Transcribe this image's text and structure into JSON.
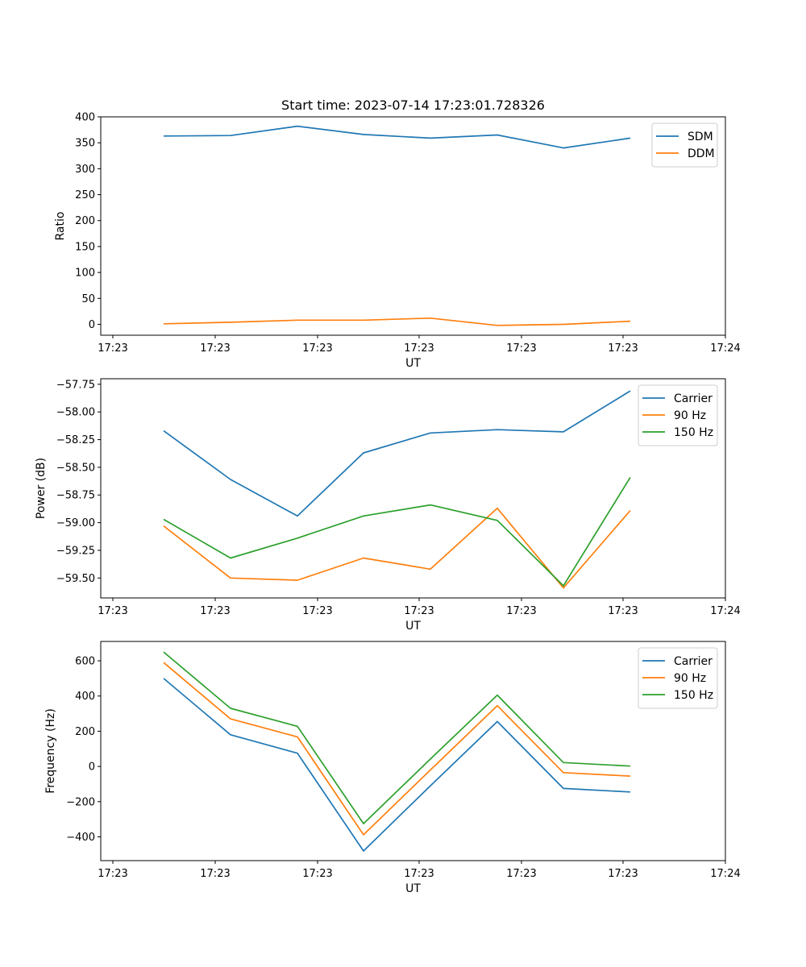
{
  "chart_data": [
    {
      "type": "line",
      "title": "Start time: 2023-07-14 17:23:01.728326",
      "xlabel": "UT",
      "ylabel": "Ratio",
      "legend_position": "top-right",
      "x_tick_labels": [
        "17:23",
        "17:23",
        "17:23",
        "17:23",
        "17:23",
        "17:23",
        "17:24"
      ],
      "y_ticks": [
        0,
        50,
        100,
        150,
        200,
        250,
        300,
        350,
        400
      ],
      "y_tick_labels": [
        "0",
        "50",
        "100",
        "150",
        "200",
        "250",
        "300",
        "350",
        "400"
      ],
      "ylim": [
        -21,
        400
      ],
      "series": [
        {
          "name": "SDM",
          "color": "#1f77b4",
          "values": [
            363,
            364,
            382,
            366,
            359,
            365,
            340,
            359
          ]
        },
        {
          "name": "DDM",
          "color": "#ff7f0e",
          "values": [
            1,
            4,
            8,
            8,
            12,
            -2,
            0,
            6
          ]
        }
      ]
    },
    {
      "type": "line",
      "title": "",
      "xlabel": "UT",
      "ylabel": "Power (dB)",
      "legend_position": "top-right",
      "x_tick_labels": [
        "17:23",
        "17:23",
        "17:23",
        "17:23",
        "17:23",
        "17:23",
        "17:24"
      ],
      "y_ticks": [
        -59.5,
        -59.25,
        -59.0,
        -58.75,
        -58.5,
        -58.25,
        -58.0,
        -57.75
      ],
      "y_tick_labels": [
        "−59.50",
        "−59.25",
        "−59.00",
        "−58.75",
        "−58.50",
        "−58.25",
        "−58.00",
        "−57.75"
      ],
      "ylim": [
        -59.68,
        -57.7
      ],
      "series": [
        {
          "name": "Carrier",
          "color": "#1f77b4",
          "values": [
            -58.17,
            -58.61,
            -58.94,
            -58.37,
            -58.19,
            -58.16,
            -58.18,
            -57.81
          ]
        },
        {
          "name": "90 Hz",
          "color": "#ff7f0e",
          "values": [
            -59.03,
            -59.5,
            -59.52,
            -59.32,
            -59.42,
            -58.87,
            -59.59,
            -58.89
          ]
        },
        {
          "name": "150 Hz",
          "color": "#2ca02c",
          "values": [
            -58.97,
            -59.32,
            -59.14,
            -58.94,
            -58.84,
            -58.98,
            -59.57,
            -58.59
          ]
        }
      ]
    },
    {
      "type": "line",
      "title": "",
      "xlabel": "UT",
      "ylabel": "Frequency (Hz)",
      "legend_position": "top-right",
      "x_tick_labels": [
        "17:23",
        "17:23",
        "17:23",
        "17:23",
        "17:23",
        "17:23",
        "17:24"
      ],
      "y_ticks": [
        -400,
        -200,
        0,
        200,
        400,
        600
      ],
      "y_tick_labels": [
        "−400",
        "−200",
        "0",
        "200",
        "400",
        "600"
      ],
      "ylim": [
        -535,
        710
      ],
      "series": [
        {
          "name": "Carrier",
          "color": "#1f77b4",
          "values": [
            500,
            180,
            75,
            -480,
            -110,
            255,
            -125,
            -145
          ]
        },
        {
          "name": "90 Hz",
          "color": "#ff7f0e",
          "values": [
            590,
            270,
            168,
            -388,
            -20,
            345,
            -35,
            -55
          ]
        },
        {
          "name": "150 Hz",
          "color": "#2ca02c",
          "values": [
            650,
            330,
            228,
            -325,
            42,
            405,
            22,
            2
          ]
        }
      ]
    }
  ]
}
